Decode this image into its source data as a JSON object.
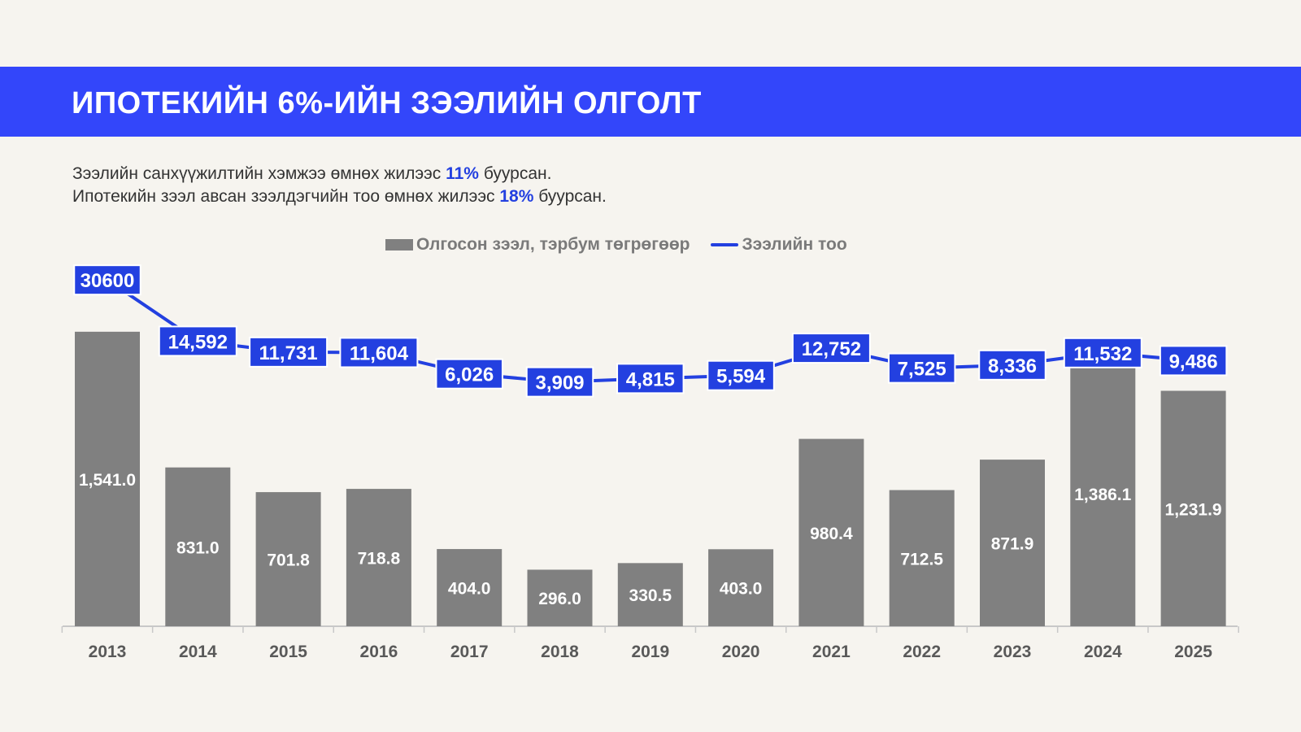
{
  "header": {
    "title": "ИПОТЕКИЙН 6%-ИЙН ЗЭЭЛИЙН ОЛГОЛТ"
  },
  "notes": {
    "line1_pre": "Зээлийн санхүүжилтийн хэмжээ өмнөх жилээс ",
    "line1_pct": "11%",
    "line1_post": " буурсан.",
    "line2_pre": "Ипотекийн зээл авсан зээлдэгчийн тоо өмнөх жилээс ",
    "line2_pct": "18%",
    "line2_post": " буурсан."
  },
  "colors": {
    "banner": "#3346fa",
    "accent": "#2340e0",
    "bar": "#808080",
    "background": "#f6f4ef"
  },
  "chart_data": {
    "type": "bar+line",
    "categories": [
      "2013",
      "2014",
      "2015",
      "2016",
      "2017",
      "2018",
      "2019",
      "2020",
      "2021",
      "2022",
      "2023",
      "2024",
      "2025"
    ],
    "series": [
      {
        "name": "Олгосон зээл, тэрбум төгрөгөөр",
        "type": "bar",
        "values": [
          1541.0,
          831.0,
          701.8,
          718.8,
          404.0,
          296.0,
          330.5,
          403.0,
          980.4,
          712.5,
          871.9,
          1386.1,
          1231.9
        ],
        "labels": [
          "1,541.0",
          "831.0",
          "701.8",
          "718.8",
          "404.0",
          "296.0",
          "330.5",
          "403.0",
          "980.4",
          "712.5",
          "871.9",
          "1,386.1",
          "1,231.9"
        ]
      },
      {
        "name": "Зээлийн тоо",
        "type": "line",
        "values": [
          30600,
          14592,
          11731,
          11604,
          6026,
          3909,
          4815,
          5594,
          12752,
          7525,
          8336,
          11532,
          9486
        ],
        "labels": [
          "30600",
          "14,592",
          "11,731",
          "11,604",
          "6,026",
          "3,909",
          "4,815",
          "5,594",
          "12,752",
          "7,525",
          "8,336",
          "11,532",
          "9,486"
        ]
      }
    ],
    "bar_axis_range": [
      0,
      2000
    ],
    "line_axis_range": [
      -60000,
      40000
    ],
    "legend_position": "top-center",
    "grid": false
  }
}
